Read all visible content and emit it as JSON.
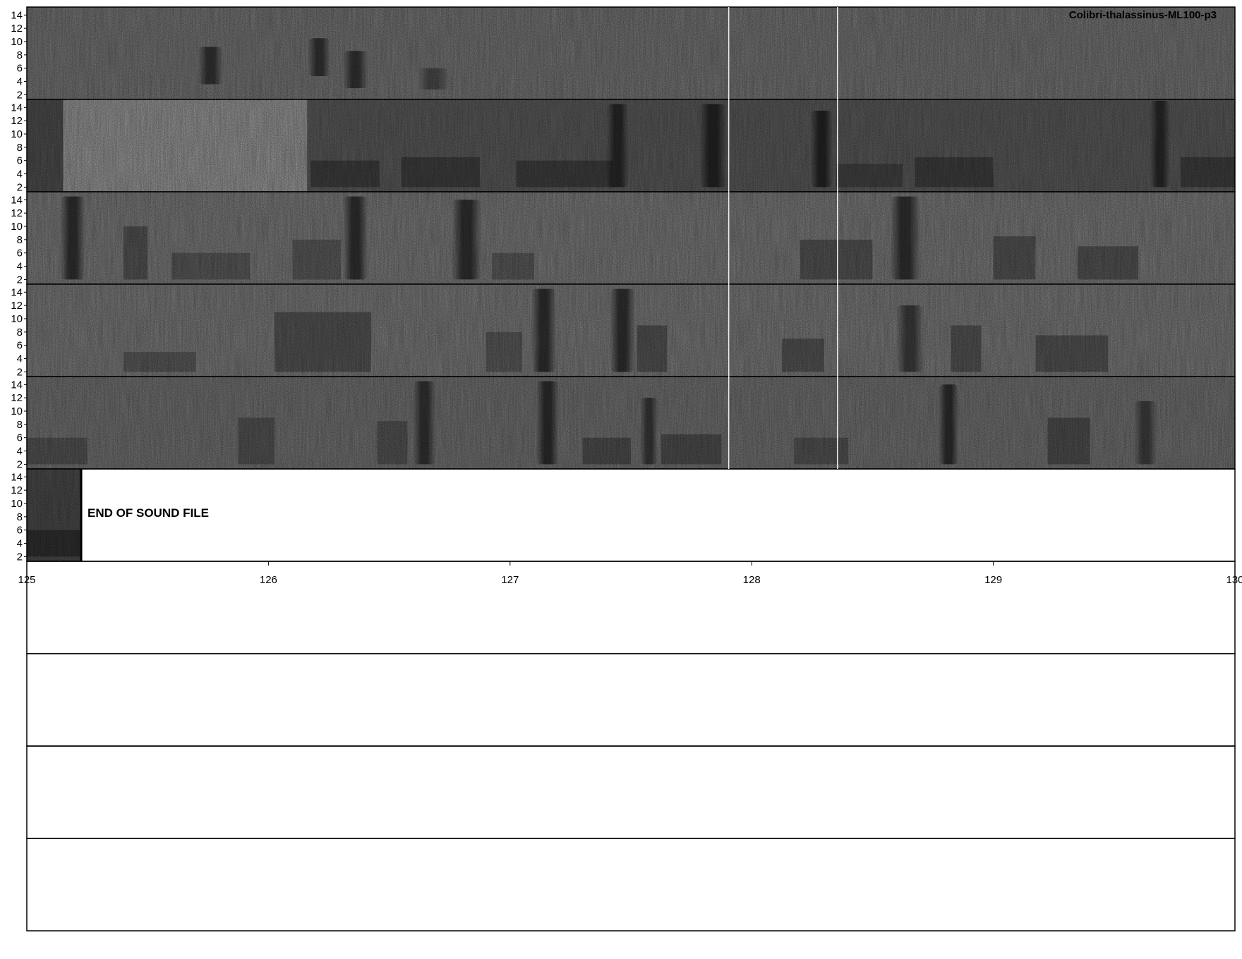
{
  "chart_data": {
    "type": "heatmap",
    "title": "Colibri-thalassinus-ML100-p3",
    "xlabel": "",
    "ylabel": "",
    "rows_total": 10,
    "rows_with_audio": 6,
    "y_ticks": [
      2,
      4,
      6,
      8,
      10,
      12,
      14
    ],
    "ylim": [
      1.3,
      15.2
    ],
    "x_ticks": [
      "125",
      "126",
      "127",
      "128",
      "129",
      "130"
    ],
    "end_label": "END OF SOUND FILE",
    "end_fraction": 0.045,
    "row_backgrounds": [
      "#8c8c8c",
      "#6d6d6d",
      "#939393",
      "#939393",
      "#898989",
      "#5a5a5a"
    ],
    "row0_gap": {
      "start": 0.03,
      "end": 0.232,
      "color": "#b8b8b8"
    },
    "row1_light_band": {
      "start": 0.03,
      "end": 0.232,
      "color": "#b4b4b4"
    },
    "divider_lines": [
      0.581,
      0.671
    ],
    "calls": [
      {
        "row": 0,
        "t": 0.142,
        "w": 0.02,
        "f0": 3.6,
        "f1": 9.2,
        "d": 0.55
      },
      {
        "row": 0,
        "t": 0.233,
        "w": 0.018,
        "f0": 4.8,
        "f1": 10.5,
        "d": 0.55
      },
      {
        "row": 0,
        "t": 0.262,
        "w": 0.02,
        "f0": 3.0,
        "f1": 8.6,
        "d": 0.55
      },
      {
        "row": 0,
        "t": 0.324,
        "w": 0.025,
        "f0": 2.8,
        "f1": 6.0,
        "d": 0.35
      },
      {
        "row": 1,
        "t": 0.48,
        "w": 0.018,
        "f0": 2.0,
        "f1": 14.5,
        "d": 0.55
      },
      {
        "row": 1,
        "t": 0.557,
        "w": 0.022,
        "f0": 2.0,
        "f1": 14.5,
        "d": 0.6
      },
      {
        "row": 1,
        "t": 0.649,
        "w": 0.018,
        "f0": 2.0,
        "f1": 13.5,
        "d": 0.6
      },
      {
        "row": 1,
        "t": 0.93,
        "w": 0.016,
        "f0": 2.0,
        "f1": 15.0,
        "d": 0.55
      },
      {
        "row": 2,
        "t": 0.028,
        "w": 0.02,
        "f0": 2.0,
        "f1": 14.5,
        "d": 0.6
      },
      {
        "row": 2,
        "t": 0.262,
        "w": 0.02,
        "f0": 2.0,
        "f1": 14.5,
        "d": 0.6
      },
      {
        "row": 2,
        "t": 0.352,
        "w": 0.024,
        "f0": 2.0,
        "f1": 14.0,
        "d": 0.6
      },
      {
        "row": 2,
        "t": 0.715,
        "w": 0.024,
        "f0": 2.0,
        "f1": 14.5,
        "d": 0.6
      },
      {
        "row": 3,
        "t": 0.418,
        "w": 0.02,
        "f0": 2.0,
        "f1": 14.5,
        "d": 0.6
      },
      {
        "row": 3,
        "t": 0.483,
        "w": 0.02,
        "f0": 2.0,
        "f1": 14.5,
        "d": 0.6
      },
      {
        "row": 3,
        "t": 0.72,
        "w": 0.022,
        "f0": 2.0,
        "f1": 12.0,
        "d": 0.5
      },
      {
        "row": 4,
        "t": 0.32,
        "w": 0.018,
        "f0": 2.0,
        "f1": 14.5,
        "d": 0.55
      },
      {
        "row": 4,
        "t": 0.422,
        "w": 0.018,
        "f0": 2.0,
        "f1": 14.5,
        "d": 0.6
      },
      {
        "row": 4,
        "t": 0.508,
        "w": 0.014,
        "f0": 2.0,
        "f1": 12.0,
        "d": 0.5
      },
      {
        "row": 4,
        "t": 0.755,
        "w": 0.016,
        "f0": 2.0,
        "f1": 14.0,
        "d": 0.6
      },
      {
        "row": 4,
        "t": 0.917,
        "w": 0.018,
        "f0": 2.0,
        "f1": 11.5,
        "d": 0.45
      }
    ],
    "bands": [
      {
        "row": 1,
        "t0": 0.235,
        "t1": 0.292,
        "f0": 2.0,
        "f1": 6.0,
        "d": 0.3
      },
      {
        "row": 1,
        "t0": 0.31,
        "t1": 0.375,
        "f0": 2.0,
        "f1": 6.5,
        "d": 0.3
      },
      {
        "row": 1,
        "t0": 0.405,
        "t1": 0.485,
        "f0": 2.0,
        "f1": 6.0,
        "d": 0.3
      },
      {
        "row": 1,
        "t0": 0.67,
        "t1": 0.725,
        "f0": 2.0,
        "f1": 5.5,
        "d": 0.25
      },
      {
        "row": 1,
        "t0": 0.735,
        "t1": 0.8,
        "f0": 2.0,
        "f1": 6.5,
        "d": 0.3
      },
      {
        "row": 1,
        "t0": 0.955,
        "t1": 1.0,
        "f0": 2.0,
        "f1": 6.5,
        "d": 0.3
      },
      {
        "row": 2,
        "t0": 0.08,
        "t1": 0.1,
        "f0": 2.0,
        "f1": 10.0,
        "d": 0.3
      },
      {
        "row": 2,
        "t0": 0.12,
        "t1": 0.185,
        "f0": 2.0,
        "f1": 6.0,
        "d": 0.25
      },
      {
        "row": 2,
        "t0": 0.22,
        "t1": 0.26,
        "f0": 2.0,
        "f1": 8.0,
        "d": 0.25
      },
      {
        "row": 2,
        "t0": 0.385,
        "t1": 0.42,
        "f0": 2.0,
        "f1": 6.0,
        "d": 0.25
      },
      {
        "row": 2,
        "t0": 0.64,
        "t1": 0.7,
        "f0": 2.0,
        "f1": 8.0,
        "d": 0.3
      },
      {
        "row": 2,
        "t0": 0.8,
        "t1": 0.835,
        "f0": 2.0,
        "f1": 8.5,
        "d": 0.3
      },
      {
        "row": 2,
        "t0": 0.87,
        "t1": 0.92,
        "f0": 2.0,
        "f1": 7.0,
        "d": 0.3
      },
      {
        "row": 3,
        "t0": 0.08,
        "t1": 0.14,
        "f0": 2.0,
        "f1": 5.0,
        "d": 0.25
      },
      {
        "row": 3,
        "t0": 0.205,
        "t1": 0.285,
        "f0": 2.0,
        "f1": 11.0,
        "d": 0.3
      },
      {
        "row": 3,
        "t0": 0.38,
        "t1": 0.41,
        "f0": 2.0,
        "f1": 8.0,
        "d": 0.25
      },
      {
        "row": 3,
        "t0": 0.505,
        "t1": 0.53,
        "f0": 2.0,
        "f1": 9.0,
        "d": 0.3
      },
      {
        "row": 3,
        "t0": 0.625,
        "t1": 0.66,
        "f0": 2.0,
        "f1": 7.0,
        "d": 0.3
      },
      {
        "row": 3,
        "t0": 0.765,
        "t1": 0.79,
        "f0": 2.0,
        "f1": 9.0,
        "d": 0.3
      },
      {
        "row": 3,
        "t0": 0.835,
        "t1": 0.895,
        "f0": 2.0,
        "f1": 7.5,
        "d": 0.3
      },
      {
        "row": 4,
        "t0": 0.0,
        "t1": 0.05,
        "f0": 2.0,
        "f1": 6.0,
        "d": 0.25
      },
      {
        "row": 4,
        "t0": 0.175,
        "t1": 0.205,
        "f0": 2.0,
        "f1": 9.0,
        "d": 0.25
      },
      {
        "row": 4,
        "t0": 0.29,
        "t1": 0.315,
        "f0": 2.0,
        "f1": 8.5,
        "d": 0.25
      },
      {
        "row": 4,
        "t0": 0.46,
        "t1": 0.5,
        "f0": 2.0,
        "f1": 6.0,
        "d": 0.3
      },
      {
        "row": 4,
        "t0": 0.525,
        "t1": 0.575,
        "f0": 2.0,
        "f1": 6.5,
        "d": 0.3
      },
      {
        "row": 4,
        "t0": 0.635,
        "t1": 0.68,
        "f0": 2.0,
        "f1": 6.0,
        "d": 0.25
      },
      {
        "row": 4,
        "t0": 0.845,
        "t1": 0.88,
        "f0": 2.0,
        "f1": 9.0,
        "d": 0.3
      },
      {
        "row": 5,
        "t0": 0.0,
        "t1": 0.045,
        "f0": 2.0,
        "f1": 6.0,
        "d": 0.35
      }
    ]
  }
}
